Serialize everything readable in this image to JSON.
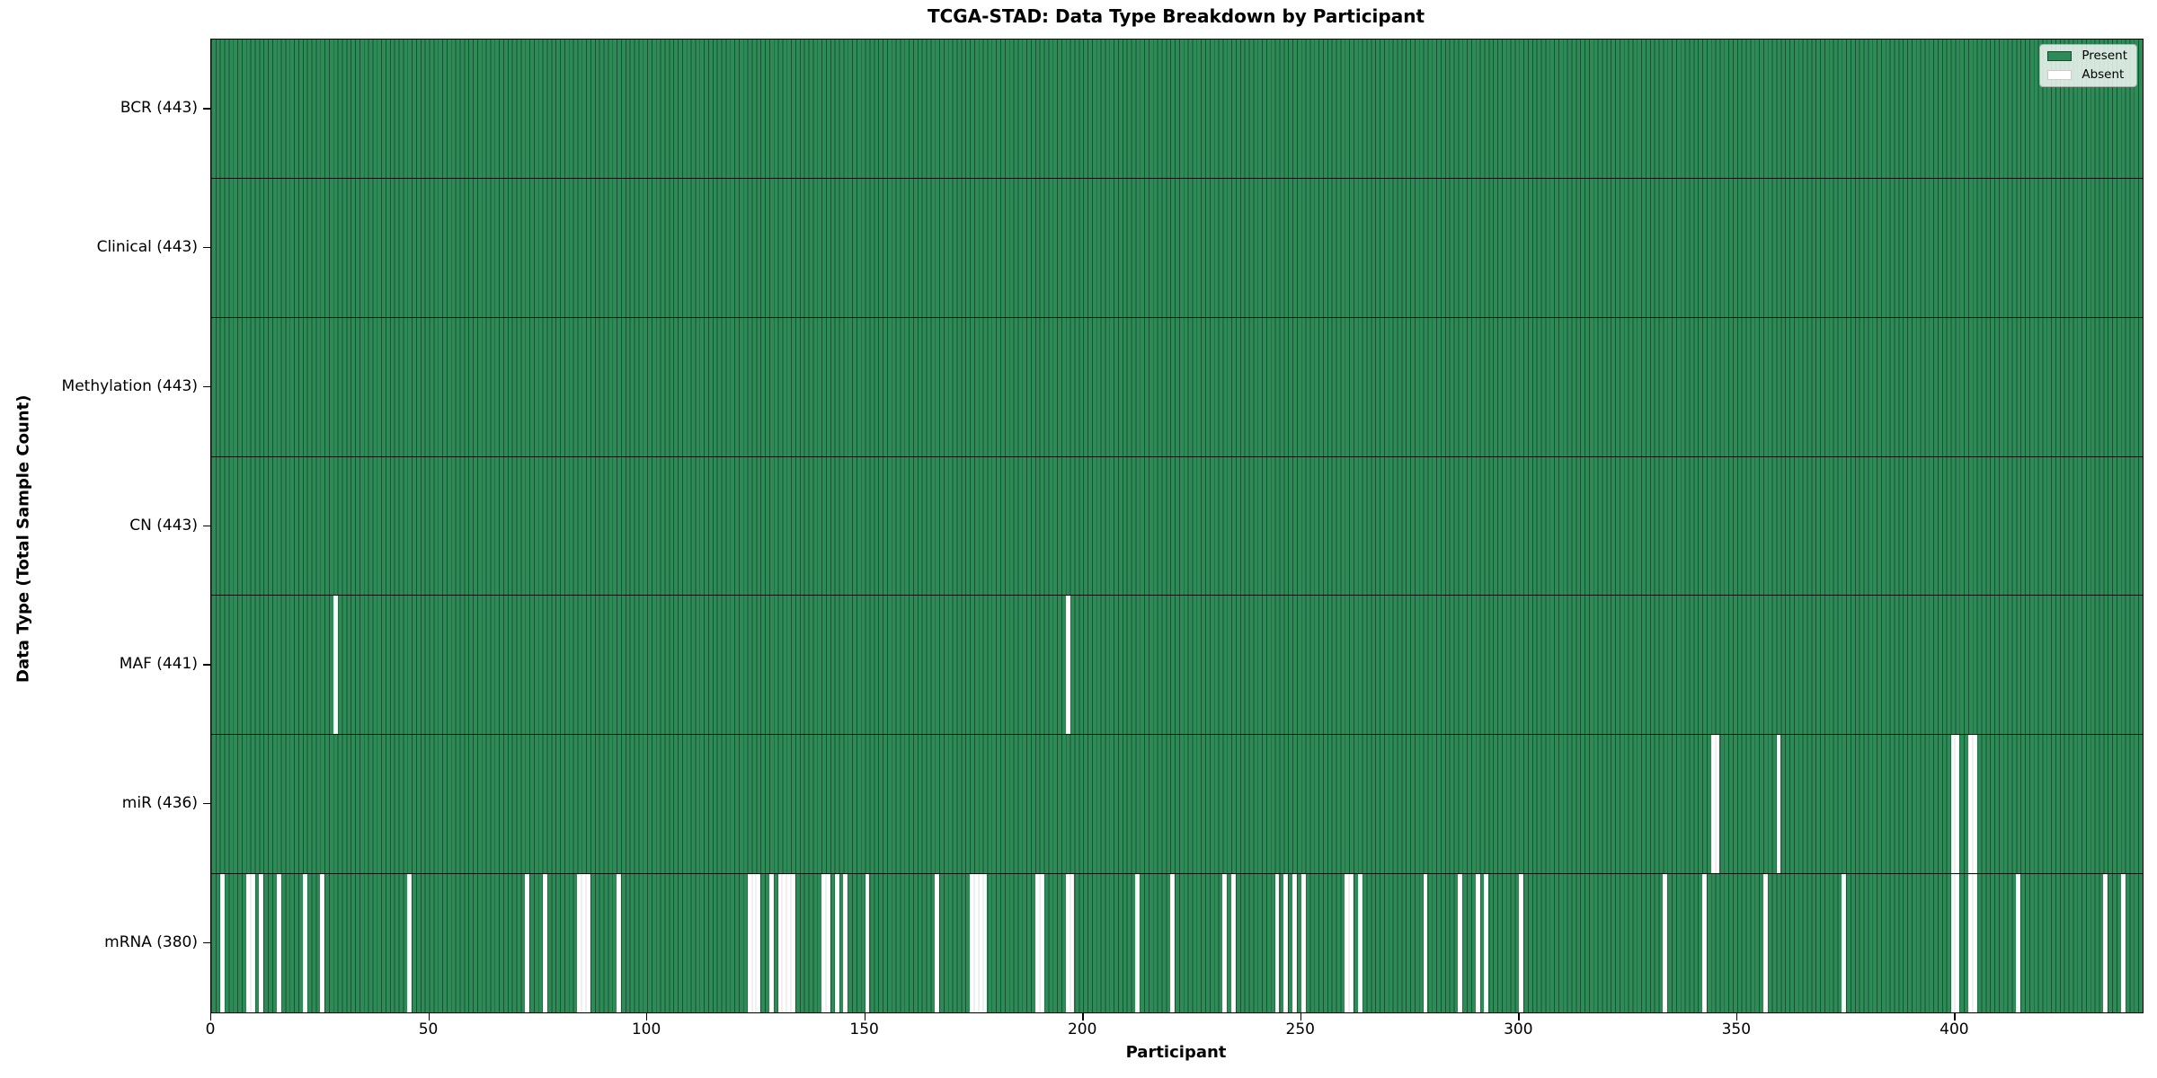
{
  "figure": {
    "title": "TCGA-STAD: Data Type Breakdown by Participant",
    "xlabel": "Participant",
    "ylabel": "Data Type (Total Sample Count)"
  },
  "legend": {
    "items": [
      {
        "label": "Present",
        "color": "#2e8b57"
      },
      {
        "label": "Absent",
        "color": "#ffffff"
      }
    ]
  },
  "chart_data": {
    "type": "heatmap",
    "title": "TCGA-STAD: Data Type Breakdown by Participant",
    "xlabel": "Participant",
    "ylabel": "Data Type (Total Sample Count)",
    "x_ticks": [
      0,
      50,
      100,
      150,
      200,
      250,
      300,
      350,
      400
    ],
    "x_range": [
      0,
      443
    ],
    "n_participants": 443,
    "present_color": "#2e8b57",
    "absent_color": "#ffffff",
    "grid": false,
    "legend_position": "upper right",
    "legend_entries": [
      "Present",
      "Absent"
    ],
    "cell_values": {
      "present": 1,
      "absent": 0
    },
    "rows": [
      {
        "label": "BCR (443)",
        "data_type": "BCR",
        "total": 443,
        "absent_participants": []
      },
      {
        "label": "Clinical (443)",
        "data_type": "Clinical",
        "total": 443,
        "absent_participants": []
      },
      {
        "label": "Methylation (443)",
        "data_type": "Methylation",
        "total": 443,
        "absent_participants": []
      },
      {
        "label": "CN (443)",
        "data_type": "CN",
        "total": 443,
        "absent_participants": []
      },
      {
        "label": "MAF (441)",
        "data_type": "MAF",
        "total": 441,
        "absent_participants": [
          28,
          196
        ]
      },
      {
        "label": "miR (436)",
        "data_type": "miR",
        "total": 436,
        "absent_participants": [
          344,
          345,
          359,
          399,
          400,
          403,
          404
        ]
      },
      {
        "label": "mRNA (380)",
        "data_type": "mRNA",
        "total": 380,
        "absent_participants": [
          2,
          8,
          9,
          11,
          15,
          21,
          25,
          45,
          72,
          76,
          84,
          85,
          86,
          93,
          123,
          124,
          125,
          128,
          130,
          131,
          132,
          133,
          140,
          141,
          143,
          145,
          150,
          166,
          174,
          175,
          176,
          177,
          189,
          190,
          196,
          197,
          212,
          220,
          232,
          234,
          244,
          246,
          248,
          250,
          260,
          261,
          263,
          278,
          286,
          290,
          292,
          300,
          333,
          342,
          356,
          374,
          399,
          400,
          403,
          404,
          414,
          434,
          438
        ]
      }
    ]
  }
}
